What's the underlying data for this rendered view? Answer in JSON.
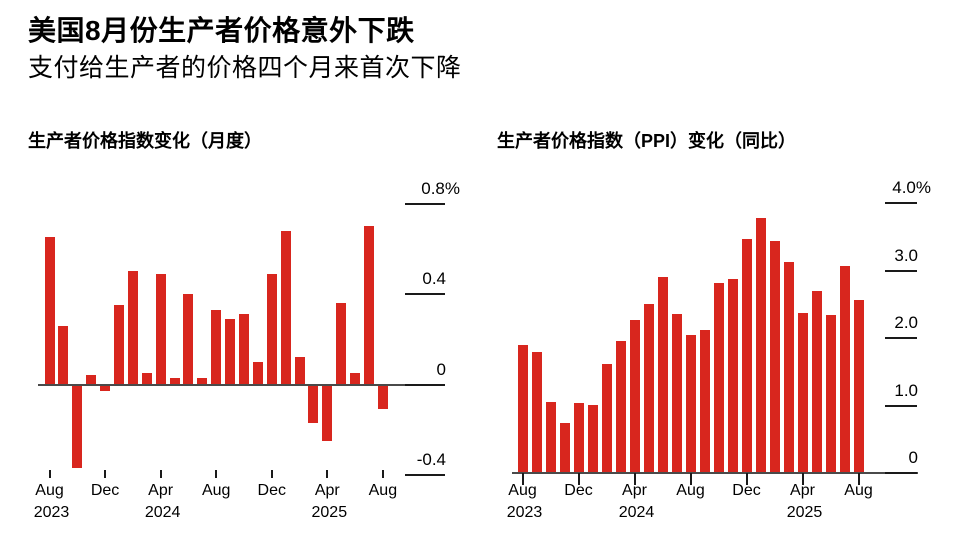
{
  "header": {
    "title": "美国8月份生产者价格意外下跌",
    "subtitle": "支付给生产者的价格四个月来首次下降"
  },
  "colors": {
    "bar_red": "#d8261e",
    "axis_line": "#4a4a4a",
    "tick": "#1a1a1a",
    "text": "#000000",
    "background": "#ffffff"
  },
  "chart_data": [
    {
      "type": "bar",
      "title": "生产者价格指数变化（月度）",
      "unit": "%",
      "categories": [
        "Aug 2023",
        "Sep 2023",
        "Oct 2023",
        "Nov 2023",
        "Dec 2023",
        "Jan 2024",
        "Feb 2024",
        "Mar 2024",
        "Apr 2024",
        "May 2024",
        "Jun 2024",
        "Jul 2024",
        "Aug 2024",
        "Sep 2024",
        "Oct 2024",
        "Nov 2024",
        "Dec 2024",
        "Jan 2025",
        "Feb 2025",
        "Mar 2025",
        "Apr 2025",
        "May 2025",
        "Jun 2025",
        "Jul 2025",
        "Aug 2025"
      ],
      "values": [
        0.65,
        0.26,
        -0.37,
        0.04,
        -0.03,
        0.35,
        0.5,
        0.05,
        0.49,
        0.03,
        0.4,
        0.03,
        0.33,
        0.29,
        0.31,
        0.1,
        0.49,
        0.68,
        0.12,
        -0.17,
        -0.25,
        0.36,
        0.05,
        0.7,
        -0.11
      ],
      "y_ticks": [
        {
          "value": 0.8,
          "label": "0.8%"
        },
        {
          "value": 0.4,
          "label": "0.4"
        },
        {
          "value": 0,
          "label": "0"
        },
        {
          "value": -0.4,
          "label": "-0.4"
        }
      ],
      "x_ticks": [
        {
          "index": 0,
          "month": "Aug",
          "year": "2023"
        },
        {
          "index": 4,
          "month": "Dec"
        },
        {
          "index": 8,
          "month": "Apr",
          "year": "2024"
        },
        {
          "index": 12,
          "month": "Aug"
        },
        {
          "index": 16,
          "month": "Dec"
        },
        {
          "index": 20,
          "month": "Apr",
          "year": "2025"
        },
        {
          "index": 24,
          "month": "Aug"
        }
      ],
      "ylim": [
        -0.45,
        0.9
      ],
      "grid": false,
      "legend": false
    },
    {
      "type": "bar",
      "title": "生产者价格指数（PPI）变化（同比）",
      "unit": "%",
      "categories": [
        "Aug 2023",
        "Sep 2023",
        "Oct 2023",
        "Nov 2023",
        "Dec 2023",
        "Jan 2024",
        "Feb 2024",
        "Mar 2024",
        "Apr 2024",
        "May 2024",
        "Jun 2024",
        "Jul 2024",
        "Aug 2024",
        "Sep 2024",
        "Oct 2024",
        "Nov 2024",
        "Dec 2024",
        "Jan 2025",
        "Feb 2025",
        "Mar 2025",
        "Apr 2025",
        "May 2025",
        "Jun 2025",
        "Jul 2025",
        "Aug 2025"
      ],
      "values": [
        1.89,
        1.8,
        1.05,
        0.74,
        1.03,
        1.01,
        1.62,
        1.96,
        2.27,
        2.51,
        2.9,
        2.36,
        2.04,
        2.12,
        2.81,
        2.88,
        3.46,
        3.78,
        3.43,
        3.13,
        2.37,
        2.7,
        2.34,
        3.07,
        2.56
      ],
      "y_ticks": [
        {
          "value": 4.0,
          "label": "4.0%"
        },
        {
          "value": 3.0,
          "label": "3.0"
        },
        {
          "value": 2.0,
          "label": "2.0"
        },
        {
          "value": 1.0,
          "label": "1.0"
        },
        {
          "value": 0,
          "label": "0"
        }
      ],
      "x_ticks": [
        {
          "index": 0,
          "month": "Aug",
          "year": "2023"
        },
        {
          "index": 4,
          "month": "Dec"
        },
        {
          "index": 8,
          "month": "Apr",
          "year": "2024"
        },
        {
          "index": 12,
          "month": "Aug"
        },
        {
          "index": 16,
          "month": "Dec"
        },
        {
          "index": 20,
          "month": "Apr",
          "year": "2025"
        },
        {
          "index": 24,
          "month": "Aug"
        }
      ],
      "ylim": [
        0,
        4.35
      ],
      "grid": false,
      "legend": false
    }
  ]
}
